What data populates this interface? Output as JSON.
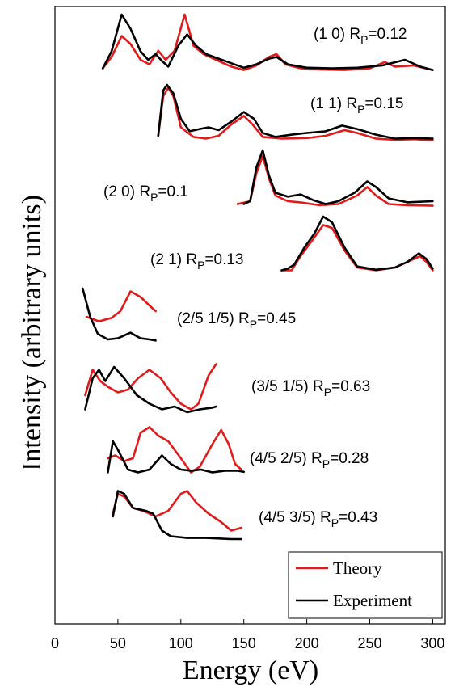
{
  "chart_data": {
    "type": "line",
    "xlabel": "Energy (eV)",
    "ylabel": "Intensity (arbitrary units)",
    "xlim": [
      0,
      310
    ],
    "xticks": [
      "0",
      "50",
      "100",
      "150",
      "200",
      "250",
      "300"
    ],
    "grid": false,
    "legend_position": "bottom-right",
    "legend": [
      {
        "label": "Theory",
        "color": "#e01b1b"
      },
      {
        "label": "Experiment",
        "color": "#000000"
      }
    ],
    "series_colors": {
      "Theory": "#e01b1b",
      "Experiment": "#000000"
    },
    "panels": [
      {
        "label": "(1 0)",
        "rp": "0.12",
        "theory": [
          [
            38,
            0.05
          ],
          [
            45,
            0.25
          ],
          [
            53,
            0.62
          ],
          [
            60,
            0.48
          ],
          [
            68,
            0.2
          ],
          [
            75,
            0.12
          ],
          [
            82,
            0.36
          ],
          [
            88,
            0.2
          ],
          [
            95,
            0.36
          ],
          [
            103,
            1.0
          ],
          [
            110,
            0.45
          ],
          [
            118,
            0.3
          ],
          [
            130,
            0.18
          ],
          [
            140,
            0.08
          ],
          [
            150,
            0.02
          ],
          [
            160,
            0.1
          ],
          [
            170,
            0.25
          ],
          [
            176,
            0.3
          ],
          [
            183,
            0.12
          ],
          [
            195,
            0.05
          ],
          [
            210,
            0.03
          ],
          [
            230,
            0.02
          ],
          [
            250,
            0.05
          ],
          [
            262,
            0.16
          ],
          [
            270,
            0.08
          ],
          [
            285,
            0.1
          ],
          [
            300,
            0.02
          ]
        ],
        "experiment": [
          [
            38,
            0.05
          ],
          [
            45,
            0.35
          ],
          [
            53,
            1.0
          ],
          [
            60,
            0.75
          ],
          [
            68,
            0.35
          ],
          [
            74,
            0.2
          ],
          [
            80,
            0.3
          ],
          [
            85,
            0.18
          ],
          [
            90,
            0.08
          ],
          [
            98,
            0.45
          ],
          [
            105,
            0.65
          ],
          [
            112,
            0.45
          ],
          [
            120,
            0.3
          ],
          [
            130,
            0.22
          ],
          [
            140,
            0.14
          ],
          [
            150,
            0.06
          ],
          [
            160,
            0.12
          ],
          [
            170,
            0.22
          ],
          [
            176,
            0.25
          ],
          [
            185,
            0.12
          ],
          [
            200,
            0.06
          ],
          [
            220,
            0.05
          ],
          [
            240,
            0.06
          ],
          [
            260,
            0.1
          ],
          [
            278,
            0.2
          ],
          [
            290,
            0.08
          ],
          [
            300,
            0.02
          ]
        ]
      },
      {
        "label": "(1 1)",
        "rp": "0.15",
        "theory": [
          [
            82,
            0.1
          ],
          [
            86,
            0.8
          ],
          [
            90,
            0.95
          ],
          [
            94,
            0.8
          ],
          [
            100,
            0.25
          ],
          [
            110,
            0.08
          ],
          [
            120,
            0.05
          ],
          [
            130,
            0.1
          ],
          [
            140,
            0.3
          ],
          [
            150,
            0.45
          ],
          [
            157,
            0.3
          ],
          [
            165,
            0.08
          ],
          [
            180,
            0.05
          ],
          [
            200,
            0.06
          ],
          [
            215,
            0.1
          ],
          [
            230,
            0.2
          ],
          [
            240,
            0.15
          ],
          [
            255,
            0.05
          ],
          [
            270,
            0.03
          ],
          [
            285,
            0.04
          ],
          [
            300,
            0.02
          ]
        ],
        "experiment": [
          [
            82,
            0.1
          ],
          [
            86,
            0.9
          ],
          [
            89,
            1.0
          ],
          [
            94,
            0.85
          ],
          [
            100,
            0.4
          ],
          [
            107,
            0.18
          ],
          [
            115,
            0.22
          ],
          [
            122,
            0.25
          ],
          [
            130,
            0.2
          ],
          [
            140,
            0.35
          ],
          [
            150,
            0.52
          ],
          [
            158,
            0.4
          ],
          [
            165,
            0.15
          ],
          [
            175,
            0.08
          ],
          [
            188,
            0.12
          ],
          [
            200,
            0.15
          ],
          [
            215,
            0.18
          ],
          [
            228,
            0.28
          ],
          [
            240,
            0.22
          ],
          [
            255,
            0.12
          ],
          [
            270,
            0.05
          ],
          [
            285,
            0.06
          ],
          [
            300,
            0.05
          ]
        ]
      },
      {
        "label": "(2 0)",
        "rp": "0.1",
        "theory": [
          [
            145,
            0.05
          ],
          [
            155,
            0.1
          ],
          [
            160,
            0.6
          ],
          [
            165,
            0.9
          ],
          [
            170,
            0.5
          ],
          [
            175,
            0.2
          ],
          [
            185,
            0.1
          ],
          [
            195,
            0.08
          ],
          [
            210,
            0.03
          ],
          [
            225,
            0.05
          ],
          [
            240,
            0.2
          ],
          [
            248,
            0.35
          ],
          [
            255,
            0.2
          ],
          [
            265,
            0.05
          ],
          [
            280,
            0.03
          ],
          [
            300,
            0.02
          ]
        ],
        "experiment": [
          [
            150,
            0.05
          ],
          [
            155,
            0.1
          ],
          [
            160,
            0.7
          ],
          [
            165,
            1.0
          ],
          [
            170,
            0.55
          ],
          [
            175,
            0.25
          ],
          [
            185,
            0.18
          ],
          [
            195,
            0.22
          ],
          [
            205,
            0.12
          ],
          [
            215,
            0.05
          ],
          [
            225,
            0.1
          ],
          [
            238,
            0.25
          ],
          [
            248,
            0.45
          ],
          [
            255,
            0.35
          ],
          [
            265,
            0.15
          ],
          [
            280,
            0.08
          ],
          [
            300,
            0.1
          ]
        ]
      },
      {
        "label": "(2 1)",
        "rp": "0.13",
        "theory": [
          [
            180,
            0.05
          ],
          [
            188,
            0.05
          ],
          [
            195,
            0.3
          ],
          [
            205,
            0.6
          ],
          [
            213,
            0.85
          ],
          [
            220,
            0.8
          ],
          [
            230,
            0.4
          ],
          [
            240,
            0.1
          ],
          [
            255,
            0.05
          ],
          [
            270,
            0.1
          ],
          [
            280,
            0.2
          ],
          [
            290,
            0.3
          ],
          [
            295,
            0.2
          ],
          [
            300,
            0.05
          ]
        ],
        "experiment": [
          [
            180,
            0.05
          ],
          [
            185,
            0.08
          ],
          [
            190,
            0.15
          ],
          [
            198,
            0.45
          ],
          [
            206,
            0.7
          ],
          [
            213,
            1.0
          ],
          [
            220,
            0.9
          ],
          [
            230,
            0.45
          ],
          [
            240,
            0.12
          ],
          [
            255,
            0.06
          ],
          [
            270,
            0.1
          ],
          [
            280,
            0.2
          ],
          [
            289,
            0.35
          ],
          [
            295,
            0.25
          ],
          [
            300,
            0.08
          ]
        ]
      },
      {
        "label": "(2/5 1/5)",
        "rp": "0.45",
        "theory": [
          [
            25,
            0.5
          ],
          [
            35,
            0.42
          ],
          [
            45,
            0.48
          ],
          [
            52,
            0.6
          ],
          [
            60,
            0.95
          ],
          [
            68,
            0.85
          ],
          [
            75,
            0.7
          ],
          [
            80,
            0.6
          ]
        ],
        "experiment": [
          [
            22,
            1.0
          ],
          [
            28,
            0.5
          ],
          [
            34,
            0.2
          ],
          [
            42,
            0.1
          ],
          [
            50,
            0.12
          ],
          [
            60,
            0.22
          ],
          [
            68,
            0.12
          ],
          [
            75,
            0.1
          ],
          [
            80,
            0.08
          ]
        ]
      },
      {
        "label": "(3/5 1/5)",
        "rp": "0.63",
        "theory": [
          [
            24,
            0.3
          ],
          [
            30,
            0.75
          ],
          [
            36,
            0.55
          ],
          [
            42,
            0.45
          ],
          [
            50,
            0.35
          ],
          [
            58,
            0.4
          ],
          [
            66,
            0.6
          ],
          [
            75,
            0.75
          ],
          [
            84,
            0.6
          ],
          [
            92,
            0.35
          ],
          [
            100,
            0.15
          ],
          [
            108,
            0.05
          ],
          [
            114,
            0.15
          ],
          [
            122,
            0.65
          ],
          [
            128,
            0.85
          ]
        ],
        "experiment": [
          [
            24,
            0.05
          ],
          [
            30,
            0.6
          ],
          [
            35,
            0.75
          ],
          [
            40,
            0.55
          ],
          [
            47,
            0.8
          ],
          [
            55,
            0.6
          ],
          [
            65,
            0.3
          ],
          [
            75,
            0.15
          ],
          [
            85,
            0.05
          ],
          [
            95,
            0.1
          ],
          [
            105,
            0.0
          ],
          [
            115,
            0.05
          ],
          [
            125,
            0.08
          ],
          [
            128,
            0.1
          ]
        ]
      },
      {
        "label": "(4/5 2/5)",
        "rp": "0.28",
        "theory": [
          [
            42,
            0.3
          ],
          [
            48,
            0.35
          ],
          [
            55,
            0.25
          ],
          [
            62,
            0.3
          ],
          [
            68,
            0.75
          ],
          [
            75,
            0.85
          ],
          [
            82,
            0.7
          ],
          [
            90,
            0.6
          ],
          [
            100,
            0.3
          ],
          [
            108,
            0.05
          ],
          [
            115,
            0.15
          ],
          [
            125,
            0.55
          ],
          [
            132,
            0.8
          ],
          [
            138,
            0.55
          ],
          [
            143,
            0.2
          ],
          [
            148,
            0.1
          ]
        ],
        "experiment": [
          [
            42,
            0.05
          ],
          [
            46,
            0.6
          ],
          [
            50,
            0.45
          ],
          [
            58,
            0.1
          ],
          [
            66,
            0.05
          ],
          [
            75,
            0.1
          ],
          [
            85,
            0.35
          ],
          [
            92,
            0.2
          ],
          [
            100,
            0.1
          ],
          [
            108,
            0.08
          ],
          [
            116,
            0.1
          ],
          [
            125,
            0.05
          ],
          [
            135,
            0.08
          ],
          [
            145,
            0.08
          ],
          [
            150,
            0.06
          ]
        ]
      },
      {
        "label": "(4/5 3/5)",
        "rp": "0.43",
        "theory": [
          [
            46,
            0.45
          ],
          [
            50,
            0.8
          ],
          [
            55,
            0.75
          ],
          [
            62,
            0.55
          ],
          [
            70,
            0.5
          ],
          [
            80,
            0.4
          ],
          [
            90,
            0.5
          ],
          [
            100,
            0.8
          ],
          [
            105,
            0.85
          ],
          [
            112,
            0.65
          ],
          [
            122,
            0.45
          ],
          [
            132,
            0.3
          ],
          [
            140,
            0.15
          ],
          [
            148,
            0.2
          ]
        ],
        "experiment": [
          [
            46,
            0.4
          ],
          [
            50,
            0.85
          ],
          [
            55,
            0.8
          ],
          [
            62,
            0.55
          ],
          [
            72,
            0.5
          ],
          [
            78,
            0.45
          ],
          [
            85,
            0.15
          ],
          [
            92,
            0.05
          ],
          [
            105,
            0.02
          ],
          [
            120,
            0.02
          ],
          [
            140,
            0.0
          ],
          [
            148,
            0.0
          ]
        ]
      }
    ]
  }
}
